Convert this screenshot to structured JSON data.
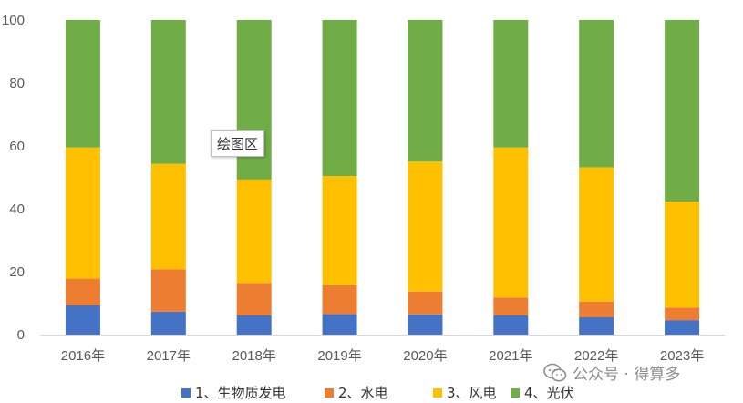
{
  "chart_data": {
    "type": "bar",
    "stacked": true,
    "categories": [
      "2016年",
      "2017年",
      "2018年",
      "2019年",
      "2020年",
      "2021年",
      "2022年",
      "2023年"
    ],
    "series": [
      {
        "name": "1、生物质发电",
        "color": "#4472C4",
        "values": [
          9.3,
          7.3,
          6.1,
          6.5,
          6.4,
          6.1,
          5.5,
          4.6
        ]
      },
      {
        "name": "2、水电",
        "color": "#ED7D31",
        "values": [
          8.5,
          13.5,
          10.3,
          9.2,
          7.3,
          5.7,
          5.0,
          4.0
        ]
      },
      {
        "name": "3、风电",
        "color": "#FFC000",
        "values": [
          41.7,
          33.5,
          32.9,
          34.7,
          41.3,
          47.7,
          42.7,
          33.7
        ]
      },
      {
        "name": "4、光伏",
        "color": "#70AD47",
        "values": [
          40.5,
          45.7,
          50.7,
          49.6,
          45.0,
          40.5,
          46.8,
          57.7
        ]
      }
    ],
    "ylim": [
      0,
      100
    ],
    "yticks": [
      0,
      20,
      40,
      60,
      80,
      100
    ],
    "grid": false,
    "legend_position": "bottom"
  },
  "tooltip": {
    "text": "绘图区"
  },
  "watermark": {
    "text": "公众号 · 得算多",
    "icon": "wechat-icon"
  }
}
